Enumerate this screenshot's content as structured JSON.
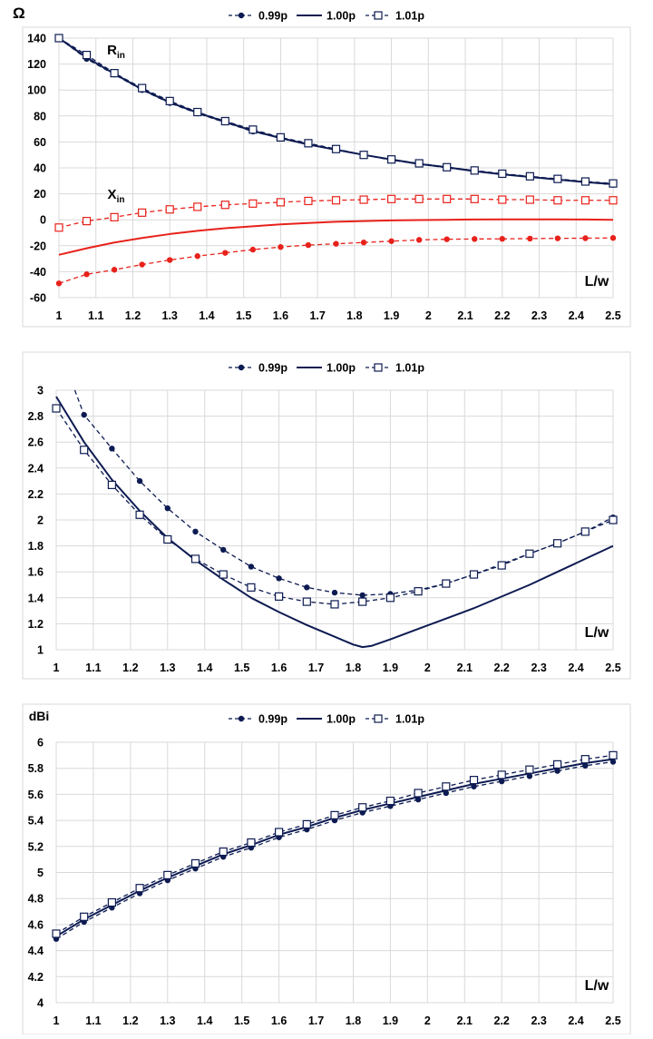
{
  "chart_data": [
    {
      "type": "line",
      "ylabel": "Ω",
      "xlabel": "L/w",
      "xlim": [
        1,
        2.5
      ],
      "ylim": [
        -60,
        140
      ],
      "yticks": [
        -60,
        -40,
        -20,
        0,
        20,
        40,
        60,
        80,
        100,
        120,
        140
      ],
      "xticks": [
        1,
        1.1,
        1.2,
        1.3,
        1.4,
        1.5,
        1.6,
        1.7,
        1.8,
        1.9,
        2,
        2.1,
        2.2,
        2.3,
        2.4,
        2.5
      ],
      "grid": "horizontal and vertical",
      "legend": {
        "position": "top",
        "entries": [
          "0.99p",
          "1.00p",
          "1.01p"
        ]
      },
      "annotations": [
        {
          "text": "R",
          "subscript": "in",
          "x": 1.13,
          "y": 127
        },
        {
          "text": "X",
          "subscript": "in",
          "x": 1.13,
          "y": 16
        }
      ],
      "series": [
        {
          "name": "0.99p",
          "group": "Rin",
          "color": "#0d1b52",
          "style": "dashed-dot",
          "x": [
            1,
            1.075,
            1.15,
            1.225,
            1.3,
            1.375,
            1.45,
            1.525,
            1.6,
            1.675,
            1.75,
            1.825,
            1.9,
            1.975,
            2.05,
            2.125,
            2.2,
            2.275,
            2.35,
            2.425,
            2.5
          ],
          "y": [
            140,
            124,
            112,
            100,
            90,
            82,
            75,
            68,
            63,
            58,
            54,
            50,
            46,
            43,
            40,
            37.5,
            35,
            33,
            31,
            29,
            27
          ]
        },
        {
          "name": "1.00p",
          "group": "Rin",
          "color": "#0d1b52",
          "style": "solid",
          "x": [
            1,
            1.075,
            1.15,
            1.225,
            1.3,
            1.375,
            1.45,
            1.525,
            1.6,
            1.675,
            1.75,
            1.825,
            1.9,
            1.975,
            2.05,
            2.125,
            2.2,
            2.275,
            2.35,
            2.425,
            2.5
          ],
          "y": [
            140,
            125,
            112.5,
            100.5,
            90.5,
            82.5,
            75.5,
            68.5,
            63,
            58,
            54,
            50,
            46.5,
            43,
            40.5,
            37.5,
            35,
            33,
            31,
            29,
            27.5
          ]
        },
        {
          "name": "1.01p",
          "group": "Rin",
          "color": "#0d1b52",
          "style": "dashed-square",
          "x": [
            1,
            1.075,
            1.15,
            1.225,
            1.3,
            1.375,
            1.45,
            1.525,
            1.6,
            1.675,
            1.75,
            1.825,
            1.9,
            1.975,
            2.05,
            2.125,
            2.2,
            2.275,
            2.35,
            2.425,
            2.5
          ],
          "y": [
            140,
            127,
            113,
            101.5,
            91.5,
            83,
            76,
            69.5,
            63.5,
            59,
            54.5,
            50,
            46.5,
            43.5,
            40.5,
            38,
            35.5,
            33.5,
            31.5,
            29.5,
            28
          ]
        },
        {
          "name": "0.99p",
          "group": "Xin",
          "color": "#e8211b",
          "style": "dashed-dot",
          "x": [
            1,
            1.075,
            1.15,
            1.225,
            1.3,
            1.375,
            1.45,
            1.525,
            1.6,
            1.675,
            1.75,
            1.825,
            1.9,
            1.975,
            2.05,
            2.125,
            2.2,
            2.275,
            2.35,
            2.425,
            2.5
          ],
          "y": [
            -49,
            -42,
            -38.5,
            -34.5,
            -31,
            -28,
            -25.5,
            -23,
            -21,
            -19.5,
            -18.5,
            -17.5,
            -16.5,
            -15.5,
            -15,
            -14.8,
            -14.7,
            -14.5,
            -14.3,
            -14.2,
            -14
          ]
        },
        {
          "name": "1.00p",
          "group": "Xin",
          "color": "#e8211b",
          "style": "solid",
          "x": [
            1,
            1.075,
            1.15,
            1.225,
            1.3,
            1.375,
            1.45,
            1.525,
            1.6,
            1.675,
            1.75,
            1.825,
            1.9,
            1.975,
            2.05,
            2.125,
            2.2,
            2.275,
            2.35,
            2.425,
            2.5
          ],
          "y": [
            -27,
            -22,
            -17.5,
            -14,
            -11,
            -8.5,
            -6.5,
            -5,
            -3.5,
            -2.5,
            -1.5,
            -1,
            -0.5,
            -0.2,
            0,
            0.2,
            0.3,
            0.3,
            0.3,
            0.2,
            0
          ]
        },
        {
          "name": "1.01p",
          "group": "Xin",
          "color": "#e8211b",
          "style": "dashed-square",
          "x": [
            1,
            1.075,
            1.15,
            1.225,
            1.3,
            1.375,
            1.45,
            1.525,
            1.6,
            1.675,
            1.75,
            1.825,
            1.9,
            1.975,
            2.05,
            2.125,
            2.2,
            2.275,
            2.35,
            2.425,
            2.5
          ],
          "y": [
            -6,
            -1,
            2,
            5.5,
            8,
            10,
            11.5,
            12.5,
            13.5,
            14.5,
            15,
            15.5,
            16,
            16,
            16,
            16,
            15.5,
            15.5,
            15,
            15,
            15
          ]
        }
      ]
    },
    {
      "type": "line",
      "xlabel": "L/w",
      "xlim": [
        1,
        2.5
      ],
      "ylim": [
        1,
        3
      ],
      "yticks": [
        1,
        1.2,
        1.4,
        1.6,
        1.8,
        2,
        2.2,
        2.4,
        2.6,
        2.8,
        3
      ],
      "xticks": [
        1,
        1.1,
        1.2,
        1.3,
        1.4,
        1.5,
        1.6,
        1.7,
        1.8,
        1.9,
        2,
        2.1,
        2.2,
        2.3,
        2.4,
        2.5
      ],
      "grid": "horizontal and vertical",
      "legend": {
        "position": "top",
        "entries": [
          "0.99p",
          "1.00p",
          "1.01p"
        ]
      },
      "series": [
        {
          "name": "0.99p",
          "color": "#0d1b52",
          "style": "dashed-dot",
          "x": [
            1.075,
            1.15,
            1.225,
            1.3,
            1.375,
            1.45,
            1.525,
            1.6,
            1.675,
            1.75,
            1.825,
            1.9,
            1.975,
            2.05,
            2.125,
            2.2,
            2.275,
            2.35,
            2.425,
            2.5
          ],
          "y": [
            2.81,
            2.55,
            2.3,
            2.09,
            1.91,
            1.77,
            1.64,
            1.55,
            1.48,
            1.44,
            1.42,
            1.43,
            1.46,
            1.51,
            1.58,
            1.66,
            1.74,
            1.82,
            1.91,
            2.02
          ],
          "curve_start": [
            1.05,
            3.0
          ]
        },
        {
          "name": "1.00p",
          "color": "#0d1b52",
          "style": "solid",
          "x": [
            1,
            1.075,
            1.15,
            1.225,
            1.3,
            1.375,
            1.45,
            1.525,
            1.6,
            1.675,
            1.75,
            1.8,
            1.825,
            1.85,
            1.9,
            1.975,
            2.05,
            2.125,
            2.2,
            2.275,
            2.35,
            2.425,
            2.5
          ],
          "y": [
            2.95,
            2.6,
            2.31,
            2.07,
            1.86,
            1.69,
            1.54,
            1.4,
            1.29,
            1.19,
            1.1,
            1.04,
            1.02,
            1.03,
            1.08,
            1.16,
            1.24,
            1.32,
            1.41,
            1.5,
            1.6,
            1.7,
            1.8
          ]
        },
        {
          "name": "1.01p",
          "color": "#0d1b52",
          "style": "dashed-square",
          "x": [
            1,
            1.075,
            1.15,
            1.225,
            1.3,
            1.375,
            1.45,
            1.525,
            1.6,
            1.675,
            1.75,
            1.825,
            1.9,
            1.975,
            2.05,
            2.125,
            2.2,
            2.275,
            2.35,
            2.425,
            2.5
          ],
          "y": [
            2.86,
            2.54,
            2.27,
            2.04,
            1.85,
            1.7,
            1.58,
            1.48,
            1.41,
            1.37,
            1.35,
            1.37,
            1.4,
            1.45,
            1.51,
            1.58,
            1.65,
            1.74,
            1.82,
            1.91,
            2.0
          ]
        }
      ]
    },
    {
      "type": "line",
      "ylabel": "dBi",
      "xlabel": "L/w",
      "xlim": [
        1,
        2.5
      ],
      "ylim": [
        4,
        6
      ],
      "yticks": [
        4,
        4.2,
        4.4,
        4.6,
        4.8,
        5,
        5.2,
        5.4,
        5.6,
        5.8,
        6
      ],
      "xticks": [
        1,
        1.1,
        1.2,
        1.3,
        1.4,
        1.5,
        1.6,
        1.7,
        1.8,
        1.9,
        2,
        2.1,
        2.2,
        2.3,
        2.4,
        2.5
      ],
      "grid": "horizontal and vertical",
      "legend": {
        "position": "top",
        "entries": [
          "0.99p",
          "1.00p",
          "1.01p"
        ]
      },
      "series": [
        {
          "name": "0.99p",
          "color": "#0d1b52",
          "style": "dashed-dot",
          "x": [
            1,
            1.075,
            1.15,
            1.225,
            1.3,
            1.375,
            1.45,
            1.525,
            1.6,
            1.675,
            1.75,
            1.825,
            1.9,
            1.975,
            2.05,
            2.125,
            2.2,
            2.275,
            2.35,
            2.425,
            2.5
          ],
          "y": [
            4.49,
            4.62,
            4.73,
            4.84,
            4.94,
            5.03,
            5.12,
            5.19,
            5.27,
            5.33,
            5.4,
            5.46,
            5.51,
            5.56,
            5.61,
            5.66,
            5.7,
            5.74,
            5.78,
            5.82,
            5.85
          ]
        },
        {
          "name": "1.00p",
          "color": "#0d1b52",
          "style": "solid",
          "x": [
            1,
            1.075,
            1.15,
            1.225,
            1.3,
            1.375,
            1.45,
            1.525,
            1.6,
            1.675,
            1.75,
            1.825,
            1.9,
            1.975,
            2.05,
            2.125,
            2.2,
            2.275,
            2.35,
            2.425,
            2.5
          ],
          "y": [
            4.51,
            4.64,
            4.75,
            4.86,
            4.96,
            5.05,
            5.14,
            5.21,
            5.29,
            5.35,
            5.42,
            5.48,
            5.53,
            5.58,
            5.63,
            5.68,
            5.72,
            5.76,
            5.8,
            5.84,
            5.87
          ]
        },
        {
          "name": "1.01p",
          "color": "#0d1b52",
          "style": "dashed-square",
          "x": [
            1,
            1.075,
            1.15,
            1.225,
            1.3,
            1.375,
            1.45,
            1.525,
            1.6,
            1.675,
            1.75,
            1.825,
            1.9,
            1.975,
            2.05,
            2.125,
            2.2,
            2.275,
            2.35,
            2.425,
            2.5
          ],
          "y": [
            4.53,
            4.66,
            4.77,
            4.88,
            4.98,
            5.07,
            5.16,
            5.23,
            5.31,
            5.37,
            5.44,
            5.5,
            5.55,
            5.61,
            5.66,
            5.71,
            5.75,
            5.79,
            5.83,
            5.87,
            5.9
          ]
        }
      ]
    }
  ]
}
